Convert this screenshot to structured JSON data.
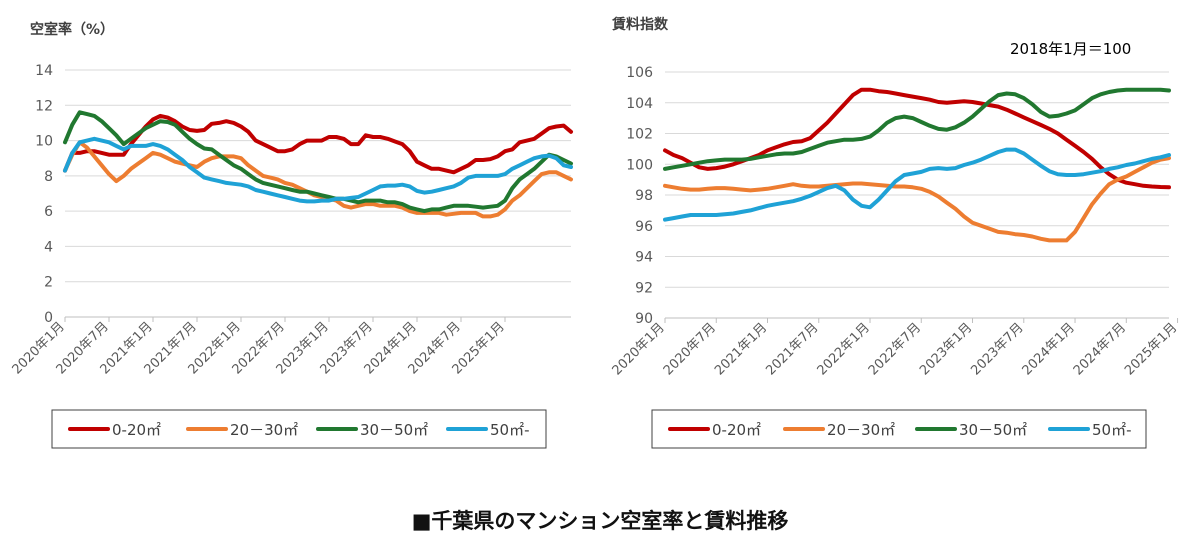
{
  "caption": "■千葉県のマンション空室率と賃料推移",
  "colors": {
    "0-20": "#c00000",
    "20-30": "#ed7d31",
    "30-50": "#217830",
    "50-": "#1fa2d6"
  },
  "chart_data": [
    {
      "type": "line",
      "ylabel": "空室率（%）",
      "ylim": [
        0,
        14
      ],
      "yticks": [
        0,
        2,
        4,
        6,
        8,
        10,
        12,
        14
      ],
      "grid": true,
      "legend_position": "bottom",
      "x_tick_labels": [
        "2020年1月",
        "2020年7月",
        "2021年1月",
        "2021年7月",
        "2022年1月",
        "2022年7月",
        "2023年1月",
        "2023年7月",
        "2024年1月",
        "2024年7月",
        "2025年1月"
      ],
      "series": [
        {
          "name": "0-20㎡",
          "color_key": "0-20",
          "values": [
            8.3,
            9.3,
            9.3,
            9.4,
            9.4,
            9.3,
            9.2,
            9.2,
            9.2,
            9.8,
            10.3,
            10.8,
            11.2,
            11.4,
            11.3,
            11.1,
            10.8,
            10.6,
            10.55,
            10.6,
            10.95,
            11.0,
            11.1,
            11.0,
            10.8,
            10.5,
            10.0,
            9.8,
            9.6,
            9.4,
            9.4,
            9.5,
            9.8,
            10.0,
            10.0,
            10.0,
            10.2,
            10.2,
            10.1,
            9.8,
            9.8,
            10.3,
            10.2,
            10.2,
            10.1,
            9.95,
            9.8,
            9.4,
            8.8,
            8.6,
            8.4,
            8.4,
            8.3,
            8.2,
            8.4,
            8.6,
            8.9,
            8.9,
            8.95,
            9.1,
            9.4,
            9.5,
            9.9,
            10.0,
            10.1,
            10.4,
            10.7,
            10.8,
            10.85,
            10.5
          ]
        },
        {
          "name": "20－30㎡",
          "color_key": "20-30",
          "values": [
            8.3,
            9.2,
            9.9,
            9.6,
            9.1,
            8.6,
            8.1,
            7.7,
            8.0,
            8.4,
            8.7,
            9.0,
            9.3,
            9.2,
            9.0,
            8.8,
            8.7,
            8.6,
            8.5,
            8.8,
            9.0,
            9.1,
            9.1,
            9.1,
            9.0,
            8.6,
            8.3,
            8.0,
            7.9,
            7.8,
            7.6,
            7.5,
            7.3,
            7.1,
            6.9,
            6.8,
            6.7,
            6.6,
            6.3,
            6.2,
            6.3,
            6.4,
            6.4,
            6.3,
            6.3,
            6.3,
            6.2,
            6.0,
            5.9,
            5.9,
            5.9,
            5.9,
            5.8,
            5.85,
            5.9,
            5.9,
            5.9,
            5.7,
            5.7,
            5.8,
            6.1,
            6.6,
            6.9,
            7.3,
            7.7,
            8.1,
            8.2,
            8.2,
            8.0,
            7.8
          ]
        },
        {
          "name": "30－50㎡",
          "color_key": "30-50",
          "values": [
            9.9,
            10.9,
            11.6,
            11.5,
            11.4,
            11.1,
            10.7,
            10.3,
            9.8,
            10.1,
            10.4,
            10.7,
            10.9,
            11.1,
            11.05,
            10.9,
            10.5,
            10.1,
            9.8,
            9.55,
            9.5,
            9.2,
            8.9,
            8.6,
            8.4,
            8.1,
            7.8,
            7.6,
            7.5,
            7.4,
            7.3,
            7.2,
            7.1,
            7.1,
            7.0,
            6.9,
            6.8,
            6.7,
            6.7,
            6.6,
            6.5,
            6.6,
            6.6,
            6.6,
            6.5,
            6.5,
            6.4,
            6.2,
            6.1,
            6.0,
            6.1,
            6.1,
            6.2,
            6.3,
            6.3,
            6.3,
            6.25,
            6.2,
            6.25,
            6.3,
            6.6,
            7.3,
            7.8,
            8.1,
            8.4,
            8.8,
            9.2,
            9.1,
            8.9,
            8.7
          ]
        },
        {
          "name": "50㎡-",
          "color_key": "50-",
          "values": [
            8.3,
            9.3,
            9.9,
            10.0,
            10.1,
            10.0,
            9.9,
            9.7,
            9.5,
            9.7,
            9.7,
            9.7,
            9.8,
            9.7,
            9.5,
            9.2,
            8.9,
            8.5,
            8.2,
            7.9,
            7.8,
            7.7,
            7.6,
            7.55,
            7.5,
            7.4,
            7.2,
            7.1,
            7.0,
            6.9,
            6.8,
            6.7,
            6.6,
            6.55,
            6.55,
            6.6,
            6.6,
            6.7,
            6.7,
            6.75,
            6.8,
            7.0,
            7.2,
            7.4,
            7.45,
            7.45,
            7.5,
            7.4,
            7.15,
            7.05,
            7.1,
            7.2,
            7.3,
            7.4,
            7.6,
            7.9,
            8.0,
            8.0,
            8.0,
            8.0,
            8.1,
            8.4,
            8.6,
            8.8,
            9.0,
            9.1,
            9.15,
            9.0,
            8.6,
            8.5
          ]
        }
      ]
    },
    {
      "type": "line",
      "ylabel": "賃料指数",
      "annotation": "2018年1月＝100",
      "ylim": [
        90,
        106
      ],
      "yticks": [
        90,
        92,
        94,
        96,
        98,
        100,
        102,
        104,
        106
      ],
      "grid": true,
      "legend_position": "bottom",
      "x_tick_labels": [
        "2020年1月",
        "2020年7月",
        "2021年1月",
        "2021年7月",
        "2022年1月",
        "2022年7月",
        "2023年1月",
        "2023年7月",
        "2024年1月",
        "2024年7月",
        "2025年1月"
      ],
      "series": [
        {
          "name": "0-20㎡",
          "color_key": "0-20",
          "values": [
            100.9,
            100.6,
            100.4,
            100.1,
            99.8,
            99.7,
            99.75,
            99.85,
            100.0,
            100.2,
            100.4,
            100.6,
            100.9,
            101.1,
            101.3,
            101.45,
            101.5,
            101.7,
            102.2,
            102.7,
            103.3,
            103.9,
            104.5,
            104.85,
            104.85,
            104.75,
            104.7,
            104.6,
            104.5,
            104.4,
            104.3,
            104.2,
            104.05,
            104.0,
            104.05,
            104.1,
            104.05,
            103.95,
            103.85,
            103.75,
            103.55,
            103.3,
            103.05,
            102.8,
            102.55,
            102.3,
            102.0,
            101.6,
            101.2,
            100.8,
            100.35,
            99.8,
            99.35,
            99.0,
            98.8,
            98.7,
            98.6,
            98.55,
            98.52,
            98.5
          ]
        },
        {
          "name": "20－30㎡",
          "color_key": "20-30",
          "values": [
            98.6,
            98.5,
            98.4,
            98.35,
            98.35,
            98.4,
            98.45,
            98.45,
            98.4,
            98.35,
            98.3,
            98.35,
            98.4,
            98.5,
            98.6,
            98.7,
            98.6,
            98.55,
            98.55,
            98.6,
            98.65,
            98.7,
            98.75,
            98.75,
            98.7,
            98.65,
            98.6,
            98.55,
            98.55,
            98.5,
            98.4,
            98.2,
            97.9,
            97.5,
            97.1,
            96.6,
            96.2,
            96.0,
            95.8,
            95.6,
            95.55,
            95.45,
            95.4,
            95.3,
            95.15,
            95.05,
            95.05,
            95.05,
            95.6,
            96.5,
            97.4,
            98.1,
            98.7,
            99.0,
            99.2,
            99.5,
            99.8,
            100.1,
            100.3,
            100.4
          ]
        },
        {
          "name": "30－50㎡",
          "color_key": "30-50",
          "values": [
            99.7,
            99.8,
            99.9,
            100.0,
            100.1,
            100.2,
            100.25,
            100.3,
            100.3,
            100.3,
            100.35,
            100.45,
            100.55,
            100.65,
            100.7,
            100.7,
            100.8,
            101.0,
            101.2,
            101.4,
            101.5,
            101.6,
            101.6,
            101.65,
            101.8,
            102.2,
            102.7,
            103.0,
            103.1,
            103.0,
            102.75,
            102.5,
            102.3,
            102.25,
            102.4,
            102.7,
            103.1,
            103.6,
            104.1,
            104.5,
            104.6,
            104.55,
            104.3,
            103.9,
            103.4,
            103.1,
            103.15,
            103.3,
            103.5,
            103.9,
            104.3,
            104.55,
            104.7,
            104.8,
            104.85,
            104.85,
            104.85,
            104.85,
            104.85,
            104.8
          ]
        },
        {
          "name": "50㎡-",
          "color_key": "50-",
          "values": [
            96.4,
            96.5,
            96.6,
            96.7,
            96.7,
            96.7,
            96.7,
            96.75,
            96.8,
            96.9,
            97.0,
            97.15,
            97.3,
            97.4,
            97.5,
            97.6,
            97.75,
            97.95,
            98.2,
            98.45,
            98.6,
            98.3,
            97.7,
            97.3,
            97.2,
            97.7,
            98.3,
            98.9,
            99.3,
            99.4,
            99.5,
            99.7,
            99.75,
            99.7,
            99.75,
            99.95,
            100.1,
            100.3,
            100.55,
            100.8,
            100.95,
            100.95,
            100.7,
            100.3,
            99.9,
            99.55,
            99.35,
            99.3,
            99.3,
            99.35,
            99.45,
            99.55,
            99.7,
            99.8,
            99.95,
            100.05,
            100.2,
            100.35,
            100.45,
            100.6
          ]
        }
      ]
    }
  ]
}
